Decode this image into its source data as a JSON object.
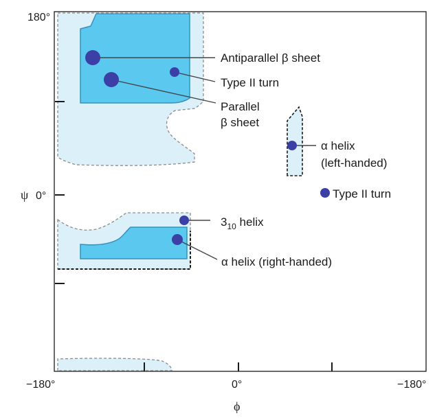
{
  "axes": {
    "y_top": "180°",
    "y_mid": "0°",
    "y_symbol": "ψ",
    "x_left": "−180°",
    "x_mid": "0°",
    "x_right": "−180°",
    "x_symbol": "ϕ"
  },
  "labels": {
    "antiparallel": "Antiparallel β sheet",
    "type2_upper": "Type II turn",
    "parallel_1": "Parallel",
    "parallel_2": "β sheet",
    "alpha_left_1": "α helix",
    "alpha_left_2": "(left-handed)",
    "type2_right": "Type II turn",
    "helix310_base": "3",
    "helix310_sub": "10",
    "helix310_rest": " helix",
    "alpha_right": "α helix (right-handed)"
  },
  "colors": {
    "allowed_region": "#5bc8f0",
    "allowed_stroke": "#3a8fb8",
    "outer_region": "#dcf0fa",
    "point": "#3b3fa6",
    "line": "#444444"
  }
}
